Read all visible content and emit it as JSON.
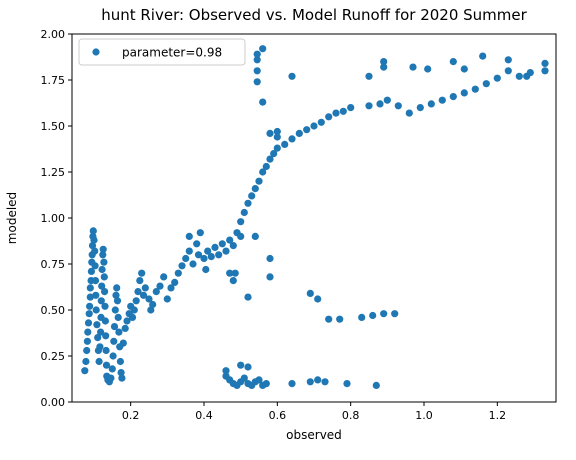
{
  "chart_data": {
    "type": "scatter",
    "title": "hunt River: Observed vs. Model Runoff for 2020 Summer",
    "xlabel": "observed",
    "ylabel": "modeled",
    "xlim": [
      0.04,
      1.36
    ],
    "ylim": [
      0.0,
      2.0
    ],
    "xticks": [
      0.2,
      0.4,
      0.6,
      0.8,
      1.0,
      1.2
    ],
    "xtick_labels": [
      "0.2",
      "0.4",
      "0.6",
      "0.8",
      "1.0",
      "1.2"
    ],
    "yticks": [
      0.0,
      0.25,
      0.5,
      0.75,
      1.0,
      1.25,
      1.5,
      1.75,
      2.0
    ],
    "ytick_labels": [
      "0.00",
      "0.25",
      "0.50",
      "0.75",
      "1.00",
      "1.25",
      "1.50",
      "1.75",
      "2.00"
    ],
    "legend_placement": "upper-left",
    "grid": false,
    "series": [
      {
        "name": "parameter=0.98",
        "color": "#1f77b4",
        "points": [
          [
            0.075,
            0.17
          ],
          [
            0.078,
            0.22
          ],
          [
            0.08,
            0.28
          ],
          [
            0.082,
            0.33
          ],
          [
            0.083,
            0.38
          ],
          [
            0.085,
            0.43
          ],
          [
            0.087,
            0.48
          ],
          [
            0.088,
            0.52
          ],
          [
            0.09,
            0.57
          ],
          [
            0.09,
            0.62
          ],
          [
            0.092,
            0.66
          ],
          [
            0.093,
            0.71
          ],
          [
            0.094,
            0.76
          ],
          [
            0.095,
            0.8
          ],
          [
            0.096,
            0.85
          ],
          [
            0.097,
            0.9
          ],
          [
            0.098,
            0.93
          ],
          [
            0.1,
            0.88
          ],
          [
            0.102,
            0.82
          ],
          [
            0.103,
            0.74
          ],
          [
            0.104,
            0.66
          ],
          [
            0.105,
            0.58
          ],
          [
            0.106,
            0.5
          ],
          [
            0.108,
            0.42
          ],
          [
            0.11,
            0.35
          ],
          [
            0.112,
            0.28
          ],
          [
            0.114,
            0.22
          ],
          [
            0.116,
            0.3
          ],
          [
            0.118,
            0.38
          ],
          [
            0.119,
            0.46
          ],
          [
            0.12,
            0.55
          ],
          [
            0.121,
            0.63
          ],
          [
            0.122,
            0.72
          ],
          [
            0.124,
            0.8
          ],
          [
            0.125,
            0.83
          ],
          [
            0.127,
            0.76
          ],
          [
            0.128,
            0.68
          ],
          [
            0.129,
            0.6
          ],
          [
            0.13,
            0.52
          ],
          [
            0.131,
            0.44
          ],
          [
            0.132,
            0.36
          ],
          [
            0.133,
            0.28
          ],
          [
            0.134,
            0.2
          ],
          [
            0.135,
            0.14
          ],
          [
            0.138,
            0.12
          ],
          [
            0.142,
            0.11
          ],
          [
            0.146,
            0.13
          ],
          [
            0.15,
            0.18
          ],
          [
            0.152,
            0.25
          ],
          [
            0.154,
            0.33
          ],
          [
            0.156,
            0.41
          ],
          [
            0.158,
            0.5
          ],
          [
            0.16,
            0.58
          ],
          [
            0.162,
            0.62
          ],
          [
            0.164,
            0.55
          ],
          [
            0.166,
            0.46
          ],
          [
            0.168,
            0.38
          ],
          [
            0.17,
            0.3
          ],
          [
            0.172,
            0.22
          ],
          [
            0.174,
            0.16
          ],
          [
            0.176,
            0.13
          ],
          [
            0.18,
            0.32
          ],
          [
            0.185,
            0.4
          ],
          [
            0.19,
            0.44
          ],
          [
            0.196,
            0.48
          ],
          [
            0.2,
            0.52
          ],
          [
            0.205,
            0.46
          ],
          [
            0.21,
            0.5
          ],
          [
            0.215,
            0.55
          ],
          [
            0.22,
            0.6
          ],
          [
            0.225,
            0.66
          ],
          [
            0.23,
            0.7
          ],
          [
            0.235,
            0.58
          ],
          [
            0.24,
            0.62
          ],
          [
            0.25,
            0.56
          ],
          [
            0.255,
            0.5
          ],
          [
            0.26,
            0.53
          ],
          [
            0.27,
            0.6
          ],
          [
            0.28,
            0.63
          ],
          [
            0.29,
            0.68
          ],
          [
            0.3,
            0.56
          ],
          [
            0.31,
            0.62
          ],
          [
            0.32,
            0.65
          ],
          [
            0.33,
            0.7
          ],
          [
            0.34,
            0.74
          ],
          [
            0.35,
            0.78
          ],
          [
            0.36,
            0.82
          ],
          [
            0.36,
            0.9
          ],
          [
            0.37,
            0.75
          ],
          [
            0.38,
            0.86
          ],
          [
            0.385,
            0.8
          ],
          [
            0.39,
            0.92
          ],
          [
            0.4,
            0.78
          ],
          [
            0.405,
            0.72
          ],
          [
            0.41,
            0.82
          ],
          [
            0.42,
            0.79
          ],
          [
            0.43,
            0.84
          ],
          [
            0.44,
            0.8
          ],
          [
            0.45,
            0.86
          ],
          [
            0.46,
            0.82
          ],
          [
            0.47,
            0.88
          ],
          [
            0.48,
            0.85
          ],
          [
            0.485,
            0.7
          ],
          [
            0.49,
            0.92
          ],
          [
            0.5,
            0.98
          ],
          [
            0.51,
            1.03
          ],
          [
            0.52,
            1.08
          ],
          [
            0.53,
            1.12
          ],
          [
            0.54,
            1.16
          ],
          [
            0.55,
            1.2
          ],
          [
            0.56,
            1.25
          ],
          [
            0.57,
            1.28
          ],
          [
            0.58,
            1.32
          ],
          [
            0.59,
            1.35
          ],
          [
            0.6,
            1.38
          ],
          [
            0.62,
            1.4
          ],
          [
            0.64,
            1.43
          ],
          [
            0.66,
            1.46
          ],
          [
            0.68,
            1.48
          ],
          [
            0.7,
            1.5
          ],
          [
            0.72,
            1.52
          ],
          [
            0.74,
            1.55
          ],
          [
            0.76,
            1.57
          ],
          [
            0.78,
            1.58
          ],
          [
            0.8,
            1.6
          ],
          [
            0.85,
            1.61
          ],
          [
            0.88,
            1.62
          ],
          [
            0.9,
            1.64
          ],
          [
            0.93,
            1.61
          ],
          [
            0.96,
            1.57
          ],
          [
            0.99,
            1.6
          ],
          [
            1.02,
            1.62
          ],
          [
            1.05,
            1.64
          ],
          [
            1.08,
            1.66
          ],
          [
            1.11,
            1.68
          ],
          [
            1.14,
            1.7
          ],
          [
            1.17,
            1.73
          ],
          [
            1.2,
            1.76
          ],
          [
            1.23,
            1.8
          ],
          [
            1.26,
            1.77
          ],
          [
            1.29,
            1.79
          ],
          [
            1.33,
            1.8
          ],
          [
            1.33,
            1.84
          ],
          [
            1.28,
            1.77
          ],
          [
            1.23,
            1.86
          ],
          [
            1.16,
            1.88
          ],
          [
            1.11,
            1.81
          ],
          [
            1.08,
            1.85
          ],
          [
            1.01,
            1.81
          ],
          [
            0.97,
            1.82
          ],
          [
            0.89,
            1.85
          ],
          [
            0.89,
            1.82
          ],
          [
            0.85,
            1.77
          ],
          [
            0.64,
            1.77
          ],
          [
            0.56,
            1.92
          ],
          [
            0.545,
            1.86
          ],
          [
            0.545,
            1.89
          ],
          [
            0.545,
            1.74
          ],
          [
            0.545,
            1.8
          ],
          [
            0.56,
            1.63
          ],
          [
            0.58,
            1.46
          ],
          [
            0.6,
            1.44
          ],
          [
            0.6,
            1.47
          ],
          [
            0.5,
            0.9
          ],
          [
            0.54,
            0.9
          ],
          [
            0.47,
            0.7
          ],
          [
            0.48,
            0.66
          ],
          [
            0.58,
            0.78
          ],
          [
            0.58,
            0.68
          ],
          [
            0.52,
            0.57
          ],
          [
            0.69,
            0.59
          ],
          [
            0.71,
            0.56
          ],
          [
            0.74,
            0.45
          ],
          [
            0.77,
            0.45
          ],
          [
            0.83,
            0.46
          ],
          [
            0.86,
            0.47
          ],
          [
            0.89,
            0.48
          ],
          [
            0.92,
            0.48
          ],
          [
            0.46,
            0.17
          ],
          [
            0.47,
            0.12
          ],
          [
            0.48,
            0.1
          ],
          [
            0.49,
            0.09
          ],
          [
            0.5,
            0.11
          ],
          [
            0.51,
            0.13
          ],
          [
            0.52,
            0.1
          ],
          [
            0.53,
            0.09
          ],
          [
            0.54,
            0.11
          ],
          [
            0.55,
            0.12
          ],
          [
            0.56,
            0.09
          ],
          [
            0.57,
            0.1
          ],
          [
            0.64,
            0.1
          ],
          [
            0.69,
            0.11
          ],
          [
            0.71,
            0.12
          ],
          [
            0.73,
            0.11
          ],
          [
            0.79,
            0.1
          ],
          [
            0.87,
            0.09
          ],
          [
            0.5,
            0.2
          ],
          [
            0.52,
            0.19
          ],
          [
            0.46,
            0.14
          ]
        ]
      }
    ]
  }
}
